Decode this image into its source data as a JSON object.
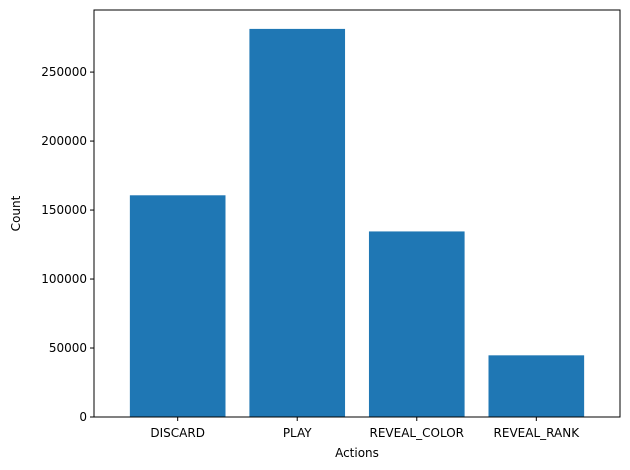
{
  "chart_data": {
    "type": "bar",
    "title": "",
    "xlabel": "Actions",
    "ylabel": "Count",
    "categories": [
      "DISCARD",
      "PLAY",
      "REVEAL_COLOR",
      "REVEAL_RANK"
    ],
    "values": [
      160700,
      281300,
      134500,
      44700
    ],
    "ylim": [
      0,
      295000
    ],
    "yticks": [
      0,
      50000,
      100000,
      150000,
      200000,
      250000
    ],
    "ytick_labels": [
      "0",
      "50000",
      "100000",
      "150000",
      "200000",
      "250000"
    ],
    "bar_color": "#1f77b4",
    "grid": false,
    "legend": "none"
  }
}
